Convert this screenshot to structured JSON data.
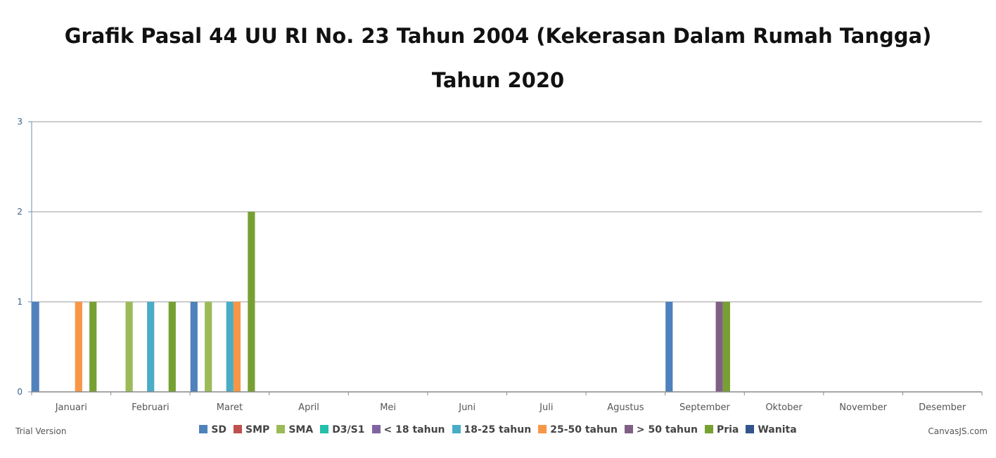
{
  "chart_data": {
    "type": "bar",
    "title": "Grafik Pasal 44 UU RI No. 23 Tahun 2004 (Kekerasan Dalam Rumah Tangga)",
    "subtitle": "Tahun 2020",
    "categories": [
      "Januari",
      "Februari",
      "Maret",
      "April",
      "Mei",
      "Juni",
      "Juli",
      "Agustus",
      "September",
      "Oktober",
      "November",
      "Desember"
    ],
    "ylim": [
      0,
      3
    ],
    "yticks": [
      0,
      1,
      2,
      3
    ],
    "grid": true,
    "legend_position": "bottom",
    "series": [
      {
        "name": "SD",
        "color": "#4f81bc",
        "values": [
          1,
          0,
          1,
          0,
          0,
          0,
          0,
          0,
          1,
          0,
          0,
          0
        ]
      },
      {
        "name": "SMP",
        "color": "#c0504e",
        "values": [
          0,
          0,
          0,
          0,
          0,
          0,
          0,
          0,
          0,
          0,
          0,
          0
        ]
      },
      {
        "name": "SMA",
        "color": "#9bbb58",
        "values": [
          0,
          1,
          1,
          0,
          0,
          0,
          0,
          0,
          0,
          0,
          0,
          0
        ]
      },
      {
        "name": "D3/S1",
        "color": "#23bfaa",
        "values": [
          0,
          0,
          0,
          0,
          0,
          0,
          0,
          0,
          0,
          0,
          0,
          0
        ]
      },
      {
        "name": "< 18 tahun",
        "color": "#8064a1",
        "values": [
          0,
          0,
          0,
          0,
          0,
          0,
          0,
          0,
          0,
          0,
          0,
          0
        ]
      },
      {
        "name": "18-25 tahun",
        "color": "#4aacc5",
        "values": [
          0,
          1,
          1,
          0,
          0,
          0,
          0,
          0,
          0,
          0,
          0,
          0
        ]
      },
      {
        "name": "25-50 tahun",
        "color": "#f79647",
        "values": [
          1,
          0,
          1,
          0,
          0,
          0,
          0,
          0,
          0,
          0,
          0,
          0
        ]
      },
      {
        "name": "> 50 tahun",
        "color": "#7f6084",
        "values": [
          0,
          0,
          0,
          0,
          0,
          0,
          0,
          0,
          1,
          0,
          0,
          0
        ]
      },
      {
        "name": "Pria",
        "color": "#77a033",
        "values": [
          1,
          1,
          2,
          0,
          0,
          0,
          0,
          0,
          1,
          0,
          0,
          0
        ]
      },
      {
        "name": "Wanita",
        "color": "#33558b",
        "values": [
          0,
          0,
          0,
          0,
          0,
          0,
          0,
          0,
          0,
          0,
          0,
          0
        ]
      }
    ]
  },
  "footer": {
    "trial": "Trial Version",
    "credit": "CanvasJS.com"
  }
}
